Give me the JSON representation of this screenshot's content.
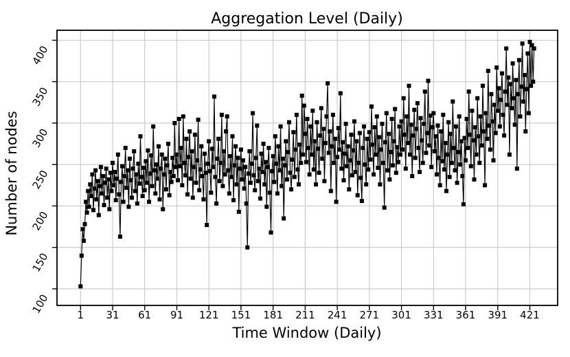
{
  "figure": {
    "background": "#ffffff"
  },
  "chart_data": {
    "type": "line",
    "title": "Aggregation Level (Daily)",
    "xlabel": "Time Window (Daily)",
    "ylabel": "Number of nodes",
    "legend": null,
    "grid": true,
    "grid_color": "#c8c8c8",
    "line_color": "#000000",
    "marker": "square",
    "marker_color": "#000000",
    "marker_size": 6,
    "xlim": [
      -21,
      447
    ],
    "ylim": [
      80,
      412
    ],
    "x_ticks": [
      1,
      31,
      61,
      91,
      121,
      151,
      181,
      211,
      241,
      271,
      301,
      331,
      361,
      391,
      421
    ],
    "y_ticks": [
      100,
      150,
      200,
      250,
      300,
      350,
      400
    ],
    "y_tick_rotation": -60,
    "x_start": 1,
    "x_step": 1,
    "values": [
      103,
      140,
      172,
      158,
      178,
      205,
      192,
      218,
      199,
      226,
      212,
      238,
      195,
      221,
      243,
      208,
      230,
      189,
      224,
      247,
      215,
      236,
      201,
      228,
      245,
      210,
      232,
      196,
      240,
      218,
      252,
      225,
      241,
      207,
      233,
      262,
      214,
      163,
      229,
      248,
      205,
      236,
      270,
      222,
      243,
      199,
      257,
      231,
      210,
      245,
      266,
      218,
      238,
      203,
      251,
      227,
      284,
      235,
      212,
      246,
      219,
      254,
      228,
      267,
      205,
      239,
      261,
      224,
      296,
      243,
      215,
      250,
      233,
      272,
      208,
      245,
      262,
      196,
      238,
      257,
      220,
      249,
      275,
      213,
      241,
      229,
      258,
      236,
      300,
      247,
      262,
      231,
      305,
      248,
      270,
      225,
      308,
      252,
      237,
      281,
      214,
      259,
      290,
      233,
      266,
      210,
      247,
      286,
      228,
      255,
      304,
      219,
      244,
      272,
      236,
      208,
      263,
      240,
      177,
      251,
      278,
      242,
      216,
      269,
      247,
      332,
      235,
      203,
      257,
      281,
      230,
      252,
      310,
      224,
      266,
      238,
      290,
      308,
      243,
      215,
      260,
      235,
      284,
      207,
      249,
      272,
      226,
      258,
      193,
      245,
      268,
      232,
      255,
      221,
      247,
      203,
      150,
      239,
      266,
      228,
      251,
      312,
      237,
      219,
      258,
      297,
      230,
      245,
      209,
      263,
      241,
      275,
      226,
      253,
      199,
      247,
      270,
      216,
      168,
      242,
      260,
      229,
      284,
      251,
      215,
      272,
      243,
      296,
      224,
      257,
      185,
      249,
      278,
      232,
      265,
      301,
      240,
      220,
      256,
      289,
      235,
      268,
      310,
      244,
      226,
      274,
      252,
      333,
      262,
      321,
      287,
      253,
      305,
      270,
      238,
      296,
      262,
      315,
      244,
      278,
      226,
      301,
      269,
      240,
      285,
      318,
      257,
      293,
      230,
      276,
      308,
      348,
      264,
      290,
      218,
      272,
      310,
      252,
      281,
      205,
      259,
      294,
      268,
      336,
      245,
      277,
      231,
      263,
      299,
      248,
      272,
      220,
      255,
      286,
      237,
      267,
      302,
      241,
      278,
      213,
      252,
      288,
      234,
      206,
      270,
      296,
      250,
      226,
      281,
      244,
      289,
      256,
      320,
      274,
      238,
      295,
      262,
      308,
      246,
      283,
      226,
      268,
      299,
      252,
      198,
      277,
      312,
      243,
      287,
      232,
      265,
      305,
      249,
      278,
      317,
      240,
      271,
      253,
      296,
      262,
      302,
      268,
      330,
      286,
      245,
      308,
      276,
      345,
      262,
      298,
      236,
      285,
      316,
      258,
      293,
      324,
      270,
      241,
      306,
      279,
      252,
      299,
      338,
      264,
      288,
      351,
      273,
      309,
      247,
      295,
      312,
      266,
      284,
      238,
      297,
      258,
      225,
      290,
      254,
      310,
      244,
      276,
      218,
      262,
      301,
      235,
      287,
      252,
      326,
      270,
      243,
      296,
      228,
      265,
      308,
      250,
      278,
      236,
      202,
      282,
      255,
      305,
      270,
      338,
      286,
      248,
      315,
      279,
      232,
      295,
      262,
      330,
      284,
      252,
      308,
      273,
      345,
      290,
      225,
      312,
      281,
      363,
      297,
      268,
      335,
      302,
      255,
      322,
      288,
      367,
      315,
      342,
      296,
      328,
      360,
      310,
      285,
      338,
      390,
      322,
      355,
      262,
      347,
      318,
      372,
      330,
      298,
      352,
      245,
      335,
      376,
      308,
      344,
      396,
      326,
      358,
      290,
      341,
      384,
      312,
      398,
      345,
      394,
      350,
      390
    ]
  }
}
